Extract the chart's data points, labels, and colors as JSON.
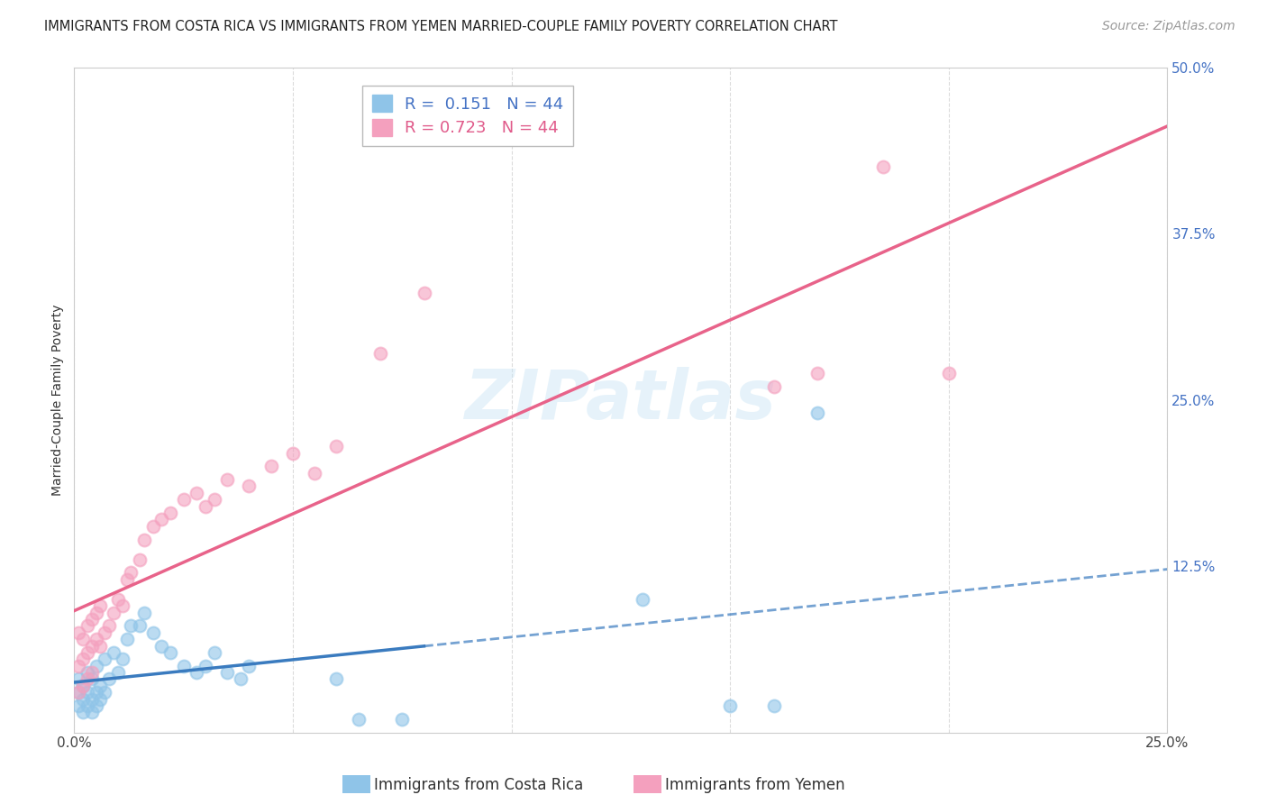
{
  "title": "IMMIGRANTS FROM COSTA RICA VS IMMIGRANTS FROM YEMEN MARRIED-COUPLE FAMILY POVERTY CORRELATION CHART",
  "source": "Source: ZipAtlas.com",
  "ylabel": "Married-Couple Family Poverty",
  "legend_labels": [
    "Immigrants from Costa Rica",
    "Immigrants from Yemen"
  ],
  "R_costa_rica": 0.151,
  "N_costa_rica": 44,
  "R_yemen": 0.723,
  "N_yemen": 44,
  "color_costa_rica": "#8fc4e8",
  "color_yemen": "#f4a0be",
  "line_color_costa_rica": "#3a7bbf",
  "line_color_yemen": "#e8638a",
  "xlim": [
    0,
    0.25
  ],
  "ylim": [
    0,
    0.5
  ],
  "xticks": [
    0.0,
    0.05,
    0.1,
    0.15,
    0.2,
    0.25
  ],
  "yticks": [
    0.0,
    0.125,
    0.25,
    0.375,
    0.5
  ],
  "watermark": "ZIPatlas",
  "background_color": "#ffffff",
  "grid_color": "#d8d8d8",
  "costa_rica_x": [
    0.001,
    0.001,
    0.001,
    0.002,
    0.002,
    0.002,
    0.003,
    0.003,
    0.003,
    0.004,
    0.004,
    0.004,
    0.005,
    0.005,
    0.005,
    0.006,
    0.006,
    0.007,
    0.007,
    0.008,
    0.009,
    0.01,
    0.011,
    0.012,
    0.013,
    0.015,
    0.016,
    0.018,
    0.02,
    0.022,
    0.025,
    0.028,
    0.03,
    0.032,
    0.035,
    0.038,
    0.04,
    0.06,
    0.065,
    0.075,
    0.13,
    0.15,
    0.16,
    0.17
  ],
  "costa_rica_y": [
    0.02,
    0.03,
    0.04,
    0.015,
    0.025,
    0.035,
    0.02,
    0.03,
    0.045,
    0.015,
    0.025,
    0.04,
    0.02,
    0.03,
    0.05,
    0.025,
    0.035,
    0.03,
    0.055,
    0.04,
    0.06,
    0.045,
    0.055,
    0.07,
    0.08,
    0.08,
    0.09,
    0.075,
    0.065,
    0.06,
    0.05,
    0.045,
    0.05,
    0.06,
    0.045,
    0.04,
    0.05,
    0.04,
    0.01,
    0.01,
    0.1,
    0.02,
    0.02,
    0.24
  ],
  "yemen_x": [
    0.001,
    0.001,
    0.001,
    0.002,
    0.002,
    0.002,
    0.003,
    0.003,
    0.003,
    0.004,
    0.004,
    0.004,
    0.005,
    0.005,
    0.006,
    0.006,
    0.007,
    0.008,
    0.009,
    0.01,
    0.011,
    0.012,
    0.013,
    0.015,
    0.016,
    0.018,
    0.02,
    0.022,
    0.025,
    0.028,
    0.03,
    0.032,
    0.035,
    0.04,
    0.045,
    0.05,
    0.055,
    0.06,
    0.07,
    0.08,
    0.16,
    0.17,
    0.185,
    0.2
  ],
  "yemen_y": [
    0.03,
    0.05,
    0.075,
    0.035,
    0.055,
    0.07,
    0.04,
    0.06,
    0.08,
    0.045,
    0.065,
    0.085,
    0.07,
    0.09,
    0.065,
    0.095,
    0.075,
    0.08,
    0.09,
    0.1,
    0.095,
    0.115,
    0.12,
    0.13,
    0.145,
    0.155,
    0.16,
    0.165,
    0.175,
    0.18,
    0.17,
    0.175,
    0.19,
    0.185,
    0.2,
    0.21,
    0.195,
    0.215,
    0.285,
    0.33,
    0.26,
    0.27,
    0.425,
    0.27
  ],
  "title_fontsize": 10.5,
  "axis_label_fontsize": 10,
  "tick_fontsize": 11,
  "legend_fontsize": 13,
  "source_fontsize": 10
}
